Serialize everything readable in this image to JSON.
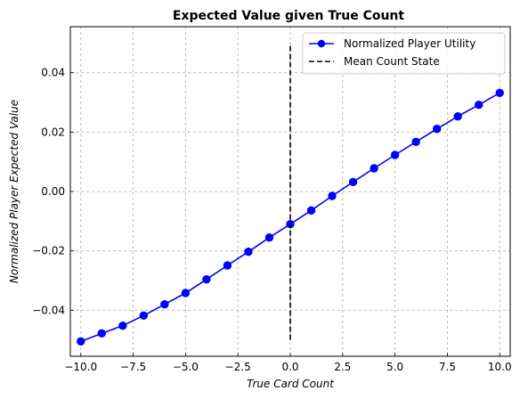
{
  "chart_data": {
    "type": "line",
    "title": "Expected Value given True Count",
    "xlabel": "True Card Count",
    "ylabel": "Normalized Player Expected Value",
    "xlim": [
      -10.5,
      10.5
    ],
    "ylim": [
      -0.0555,
      0.0555
    ],
    "xticks": [
      -10.0,
      -7.5,
      -5.0,
      -2.5,
      0.0,
      2.5,
      5.0,
      7.5,
      10.0
    ],
    "xtick_labels": [
      "−10.0",
      "−7.5",
      "−5.0",
      "−2.5",
      "0.0",
      "2.5",
      "5.0",
      "7.5",
      "10.0"
    ],
    "yticks": [
      -0.04,
      -0.02,
      0.0,
      0.02,
      0.04
    ],
    "ytick_labels": [
      "−0.04",
      "−0.02",
      "0.00",
      "0.02",
      "0.04"
    ],
    "grid": true,
    "grid_style": "dashed",
    "legend_position": "top-right",
    "series": [
      {
        "name": "Normalized Player Utility",
        "color": "#0000ff",
        "style": "solid",
        "marker": "circle",
        "x": [
          -10,
          -9,
          -8,
          -7,
          -6,
          -5,
          -4,
          -3,
          -2,
          -1,
          0,
          1,
          2,
          3,
          4,
          5,
          6,
          7,
          8,
          9,
          10
        ],
        "y": [
          -0.0505,
          -0.0478,
          -0.0452,
          -0.0418,
          -0.038,
          -0.0342,
          -0.0296,
          -0.0249,
          -0.0203,
          -0.0155,
          -0.011,
          -0.0064,
          -0.0015,
          0.0032,
          0.0078,
          0.0123,
          0.0167,
          0.0211,
          0.0253,
          0.0292,
          0.0332
        ]
      },
      {
        "name": "Mean Count State",
        "color": "#000000",
        "style": "dashed",
        "marker": "none",
        "x": [
          0,
          0
        ],
        "y": [
          -0.05,
          0.05
        ]
      }
    ]
  }
}
